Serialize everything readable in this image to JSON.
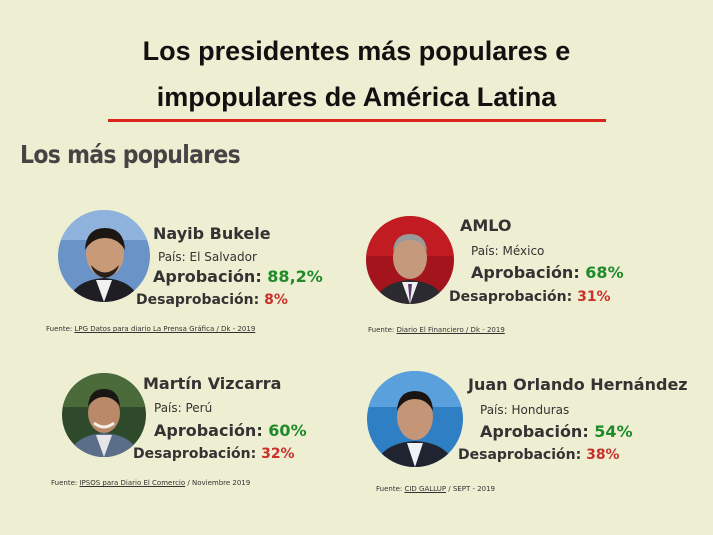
{
  "title": {
    "line1": "Los presidentes más populares e",
    "line2": "impopulares de América Latina"
  },
  "section_heading": "Los más populares",
  "colors": {
    "background": "#eeeed3",
    "approval": "#1f8a2a",
    "disapproval": "#c8322a",
    "title_rule": "#d9251c"
  },
  "presidents": [
    {
      "name": "Nayib Bukele",
      "country_label": "País: El Salvador",
      "approval_label": "Aprobación:",
      "approval_value": "88,2%",
      "disapproval_label": "Desaprobación:",
      "disapproval_value": "8%",
      "source_prefix": "Fuente:",
      "source_link": "LPG Datos para diario La Prensa Gráfica / Dk - 2019",
      "source_suffix": ""
    },
    {
      "name": "AMLO",
      "country_label": "País: México",
      "approval_label": "Aprobación:",
      "approval_value": "68%",
      "disapproval_label": "Desaprobación:",
      "disapproval_value": "31%",
      "source_prefix": "Fuente:",
      "source_link": "Diario El Financiero / Dk - 2019",
      "source_suffix": ""
    },
    {
      "name": "Martín Vizcarra",
      "country_label": "País: Perú",
      "approval_label": "Aprobación:",
      "approval_value": "60%",
      "disapproval_label": "Desaprobación:",
      "disapproval_value": "32%",
      "source_prefix": "Fuente:",
      "source_link": "IPSOS para Diario El Comercio",
      "source_suffix": " / Noviembre 2019"
    },
    {
      "name": "Juan Orlando Hernández",
      "country_label": "País: Honduras",
      "approval_label": "Aprobación:",
      "approval_value": "54%",
      "disapproval_label": "Desaprobación:",
      "disapproval_value": "38%",
      "source_prefix": "Fuente:",
      "source_link": "CID GALLUP",
      "source_suffix": " / SEPT - 2019"
    }
  ]
}
